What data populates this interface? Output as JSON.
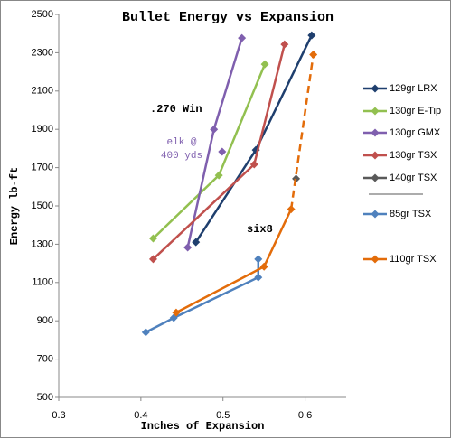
{
  "chart_data": {
    "type": "line",
    "title": "Bullet Energy vs Expansion",
    "xlabel": "Inches of Expansion",
    "ylabel": "Energy lb-ft",
    "xlim": [
      0.3,
      0.65
    ],
    "xticks": [
      0.3,
      0.4,
      0.5,
      0.6
    ],
    "ylim": [
      500,
      2500
    ],
    "yticks": [
      500,
      700,
      900,
      1100,
      1300,
      1500,
      1700,
      1900,
      2100,
      2300,
      2500
    ],
    "grid": false,
    "legend": "right",
    "series": [
      {
        "name": "129gr LRX",
        "color": "#1f3f6e",
        "x": [
          0.467,
          0.54,
          0.608
        ],
        "values": [
          1311,
          1792,
          2391
        ]
      },
      {
        "name": "130gr E-Tip",
        "color": "#92c050",
        "x": [
          0.415,
          0.495,
          0.551
        ],
        "values": [
          1330,
          1660,
          2240
        ]
      },
      {
        "name": "130gr GMX",
        "color": "#7f5fae",
        "x": [
          0.457,
          0.489,
          0.523
        ],
        "values": [
          1283,
          1900,
          2377
        ]
      },
      {
        "name": "130gr TSX",
        "color": "#c0504d",
        "x": [
          0.415,
          0.538,
          0.575
        ],
        "values": [
          1222,
          1717,
          2344
        ]
      },
      {
        "name": "140gr TSX",
        "color": "#595959",
        "x": [
          0.589
        ],
        "values": [
          1642
        ]
      },
      {
        "name": "85gr TSX",
        "color": "#4f81bd",
        "x": [
          0.406,
          0.44,
          0.543,
          0.543
        ],
        "values": [
          840,
          915,
          1127,
          1222
        ]
      },
      {
        "name": "110gr TSX",
        "color": "#e36c0a",
        "x": [
          0.443,
          0.55,
          0.583,
          0.61
        ],
        "values": [
          943,
          1183,
          1483,
          2290
        ],
        "dashed_from": 2
      }
    ],
    "annotations": [
      {
        "text": ".270 Win",
        "color": "#000000"
      },
      {
        "text_lines": [
          "elk @",
          "400 yds"
        ],
        "color": "#7f5fae",
        "x": 0.499,
        "y": 1783
      },
      {
        "text": "six8",
        "color": "#000000"
      }
    ]
  }
}
